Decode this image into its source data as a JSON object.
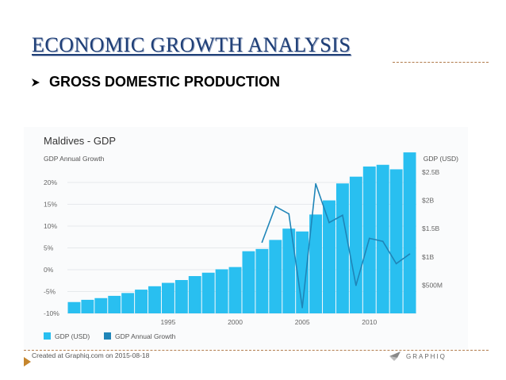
{
  "slide": {
    "title": "ECONOMIC GROWTH ANALYSIS",
    "bullet": "GROSS DOMESTIC PRODUCTION"
  },
  "chart_data": {
    "type": "bar",
    "title": "Maldives - GDP",
    "left_axis_label": "GDP Annual Growth",
    "right_axis_label": "GDP (USD)",
    "left_ticks": [
      "20%",
      "15%",
      "10%",
      "5%",
      "0%",
      "-5%",
      "-10%"
    ],
    "right_ticks": [
      "$2.5B",
      "$2B",
      "$1.5B",
      "$1B",
      "$500M"
    ],
    "x_ticks": [
      "1995",
      "2000",
      "2005",
      "2010"
    ],
    "x": [
      1988,
      1989,
      1990,
      1991,
      1992,
      1993,
      1994,
      1995,
      1996,
      1997,
      1998,
      1999,
      2000,
      2001,
      2002,
      2003,
      2004,
      2005,
      2006,
      2007,
      2008,
      2009,
      2010,
      2011,
      2012,
      2013
    ],
    "gdp_usd_billions": [
      0.2,
      0.24,
      0.27,
      0.31,
      0.36,
      0.42,
      0.48,
      0.54,
      0.59,
      0.66,
      0.72,
      0.78,
      0.82,
      1.1,
      1.14,
      1.3,
      1.5,
      1.45,
      1.75,
      2.0,
      2.3,
      2.42,
      2.6,
      2.63,
      2.55,
      2.85
    ],
    "growth_x": [
      2002,
      2003,
      2004,
      2005,
      2006,
      2007,
      2008,
      2009,
      2010,
      2011,
      2012,
      2013
    ],
    "growth_percent": [
      6.3,
      14.5,
      12.8,
      -8.7,
      19.7,
      10.8,
      12.5,
      -3.6,
      7.2,
      6.5,
      1.4,
      3.6
    ],
    "ylim_growth": [
      -10,
      20
    ],
    "ylim_gdp_billions": [
      0,
      2.5
    ],
    "series": [
      {
        "name": "GDP (USD)",
        "color": "#29bff0"
      },
      {
        "name": "GDP Annual Growth",
        "color": "#1f85b8"
      }
    ],
    "grid": true,
    "legend": "bottom-left"
  },
  "footer": {
    "credit": "Created at Graphiq.com on 2015-08-18",
    "brand": "GRAPHIQ"
  }
}
